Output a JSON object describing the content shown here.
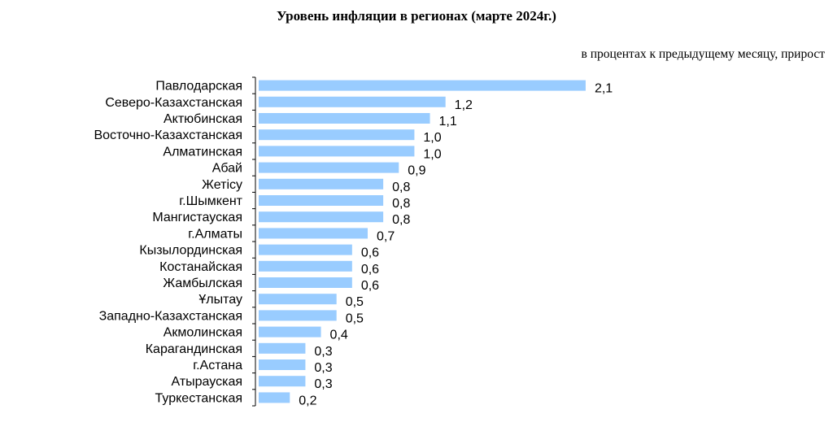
{
  "chart_data": {
    "type": "bar",
    "orientation": "horizontal",
    "title": "Уровень инфляции в регионах (марте 2024г.)",
    "subtitle": "в процентах к предыдущему месяцу, прирост",
    "categories": [
      "Павлодарская",
      "Северо-Казахстанская",
      "Актюбинская",
      "Восточно-Казахстанская",
      "Алматинская",
      "Абай",
      "Жетісу",
      "г.Шымкент",
      "Мангистауская",
      "г.Алматы",
      "Кызылординская",
      "Костанайская",
      "Жамбылская",
      "Ұлытау",
      "Западно-Казахстанская",
      "Акмолинская",
      "Карагандинская",
      "г.Астана",
      "Атырауская",
      "Туркестанская"
    ],
    "values": [
      2.1,
      1.2,
      1.1,
      1.0,
      1.0,
      0.9,
      0.8,
      0.8,
      0.8,
      0.7,
      0.6,
      0.6,
      0.6,
      0.5,
      0.5,
      0.4,
      0.3,
      0.3,
      0.3,
      0.2
    ],
    "value_labels": [
      "2,1",
      "1,2",
      "1,1",
      "1,0",
      "1,0",
      "0,9",
      "0,8",
      "0,8",
      "0,8",
      "0,7",
      "0,6",
      "0,6",
      "0,6",
      "0,5",
      "0,5",
      "0,4",
      "0,3",
      "0,3",
      "0,3",
      "0,2"
    ],
    "bar_color": "#99ccff",
    "grid": false,
    "legend": "none"
  }
}
